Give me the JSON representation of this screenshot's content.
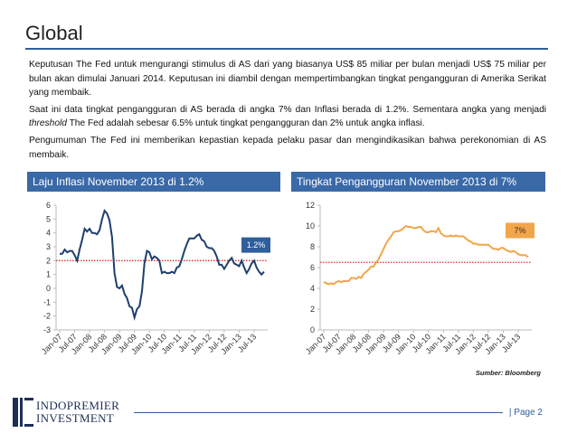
{
  "title": "Global",
  "paragraphs": [
    "Keputusan The Fed untuk mengurangi stimulus di AS dari yang biasanya US$ 85 miliar per bulan menjadi US$ 75 miliar per bulan akan dimulai Januari 2014. Keputusan ini diambil dengan mempertimbangkan tingkat pengangguran di Amerika Serikat yang membaik.",
    [
      "Saat ini data tingkat pengangguran di AS berada di angka 7% dan Inflasi berada di 1.2%. Sementara angka yang menjadi ",
      "threshold",
      " The Fed adalah sebesar 6.5% untuk tingkat pengangguran dan 2% untuk angka inflasi."
    ],
    "Pengumuman The Fed ini memberikan kepastian kepada pelaku pasar dan mengindikasikan bahwa perekonomian di AS membaik."
  ],
  "chart_data": [
    {
      "type": "line",
      "title": "Laju Inflasi November 2013 di 1.2%",
      "categories": [
        "Jan-07",
        null,
        null,
        null,
        null,
        null,
        "Jul-07",
        null,
        null,
        null,
        null,
        null,
        "Jan-08",
        null,
        null,
        null,
        null,
        null,
        "Jul-08",
        null,
        null,
        null,
        null,
        null,
        "Jan-09",
        null,
        null,
        null,
        null,
        null,
        "Jul-09",
        null,
        null,
        null,
        null,
        null,
        "Jan-10",
        null,
        null,
        null,
        null,
        null,
        "Jul-10",
        null,
        null,
        null,
        null,
        null,
        "Jan-11",
        null,
        null,
        null,
        null,
        null,
        "Jul-11",
        null,
        null,
        null,
        null,
        null,
        "Jan-12",
        null,
        null,
        null,
        null,
        null,
        "Jul-12",
        null,
        null,
        null,
        null,
        null,
        "Jan-13",
        null,
        null,
        null,
        null,
        null,
        "Jul-13",
        null,
        null,
        null,
        null
      ],
      "values": [
        2.5,
        2.5,
        2.8,
        2.6,
        2.7,
        2.7,
        2.4,
        2.0,
        2.8,
        3.5,
        4.3,
        4.1,
        4.3,
        4.0,
        4.0,
        3.9,
        4.2,
        5.0,
        5.6,
        5.4,
        4.9,
        3.7,
        1.1,
        0.1,
        0.0,
        0.2,
        -0.4,
        -0.7,
        -1.3,
        -1.4,
        -2.1,
        -1.5,
        -1.3,
        -0.2,
        1.8,
        2.7,
        2.6,
        2.1,
        2.3,
        2.2,
        2.0,
        1.1,
        1.2,
        1.1,
        1.1,
        1.2,
        1.1,
        1.5,
        1.6,
        2.1,
        2.7,
        3.2,
        3.6,
        3.6,
        3.6,
        3.8,
        3.9,
        3.5,
        3.4,
        3.0,
        2.9,
        2.9,
        2.7,
        2.3,
        1.7,
        1.7,
        1.4,
        1.7,
        2.0,
        2.2,
        1.8,
        1.7,
        1.6,
        2.0,
        1.5,
        1.1,
        1.4,
        1.8,
        2.0,
        1.5,
        1.2,
        1.0,
        1.2
      ],
      "color": "#1f3f6e",
      "ylim": [
        -3,
        6
      ],
      "yticks": [
        6,
        5,
        4,
        3,
        2,
        1,
        0,
        -1,
        -2,
        -3
      ],
      "threshold": 2,
      "threshold_color": "#d9302c",
      "annotation": "1.2%",
      "annotation_color": "#2f5f9c",
      "annotation_text_color": "#ffffff"
    },
    {
      "type": "line",
      "title": "Tingkat Pengangguran November 2013 di 7%",
      "categories": [
        "Jan-07",
        null,
        null,
        null,
        null,
        null,
        "Jul-07",
        null,
        null,
        null,
        null,
        null,
        "Jan-08",
        null,
        null,
        null,
        null,
        null,
        "Jul-08",
        null,
        null,
        null,
        null,
        null,
        "Jan-09",
        null,
        null,
        null,
        null,
        null,
        "Jul-09",
        null,
        null,
        null,
        null,
        null,
        "Jan-10",
        null,
        null,
        null,
        null,
        null,
        "Jul-10",
        null,
        null,
        null,
        null,
        null,
        "Jan-11",
        null,
        null,
        null,
        null,
        null,
        "Jul-11",
        null,
        null,
        null,
        null,
        null,
        "Jan-12",
        null,
        null,
        null,
        null,
        null,
        "Jul-12",
        null,
        null,
        null,
        null,
        null,
        "Jan-13",
        null,
        null,
        null,
        null,
        null,
        "Jul-13",
        null,
        null,
        null,
        null
      ],
      "values": [
        4.6,
        4.5,
        4.4,
        4.5,
        4.4,
        4.6,
        4.7,
        4.6,
        4.7,
        4.7,
        4.7,
        5.0,
        5.0,
        4.9,
        5.1,
        5.0,
        5.4,
        5.6,
        5.8,
        6.1,
        6.1,
        6.5,
        6.8,
        7.3,
        7.8,
        8.3,
        8.7,
        9.0,
        9.4,
        9.5,
        9.5,
        9.6,
        9.8,
        10.0,
        9.9,
        9.9,
        9.8,
        9.8,
        9.9,
        9.9,
        9.6,
        9.4,
        9.4,
        9.5,
        9.5,
        9.4,
        9.8,
        9.3,
        9.1,
        9.0,
        9.0,
        9.1,
        9.0,
        9.1,
        9.0,
        9.0,
        9.0,
        8.8,
        8.6,
        8.5,
        8.3,
        8.3,
        8.2,
        8.2,
        8.2,
        8.2,
        8.2,
        8.0,
        7.8,
        7.8,
        7.7,
        7.9,
        7.9,
        7.7,
        7.6,
        7.5,
        7.6,
        7.5,
        7.3,
        7.2,
        7.2,
        7.2,
        7.0
      ],
      "color": "#f2a54a",
      "ylim": [
        0,
        12
      ],
      "yticks": [
        12,
        10,
        8,
        6,
        4,
        2,
        0
      ],
      "threshold": 6.5,
      "threshold_color": "#d9302c",
      "annotation": "7%",
      "annotation_color": "#f2a54a",
      "annotation_text_color": "#333333"
    }
  ],
  "source": "Sumber: Bloomberg",
  "logo": [
    "INDOPREMIER",
    "INVESTMENT"
  ],
  "page": "| Page 2"
}
